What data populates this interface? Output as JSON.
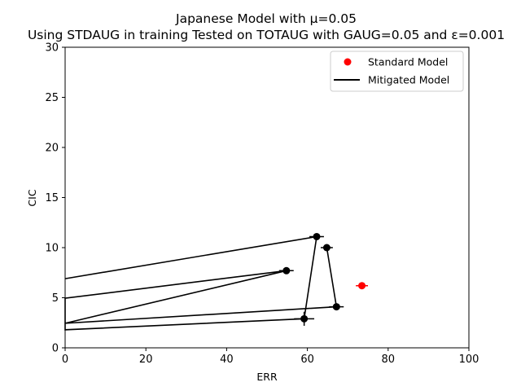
{
  "chart_data": {
    "type": "line",
    "title_line1": "Japanese Model with μ=0.05",
    "title_line2": "Using STDAUG in training Tested on TOTAUG with GAUG=0.05 and ε=0.001",
    "xlabel": "ERR",
    "ylabel": "CIC",
    "xlim": [
      0,
      100
    ],
    "ylim": [
      0,
      30
    ],
    "xticks": [
      "0",
      "20",
      "40",
      "60",
      "80",
      "100"
    ],
    "yticks": [
      "0",
      "5",
      "10",
      "15",
      "20",
      "25",
      "30"
    ],
    "legend_position": "top-right",
    "grid": false,
    "series": [
      {
        "name": "Standard Model",
        "kind": "scatter",
        "color": "#ff0000",
        "points": [
          {
            "x": 73.5,
            "y": 6.2,
            "xerr": 1.5,
            "yerr": 0.2
          }
        ]
      },
      {
        "name": "Mitigated Model",
        "kind": "line",
        "color": "#000000",
        "points": [
          {
            "x": 0,
            "y": 6.9
          },
          {
            "x": 62.3,
            "y": 11.1,
            "xerr": 1.8,
            "yerr": 0.3
          },
          {
            "x": 59.2,
            "y": 2.9,
            "xerr": 2.5,
            "yerr": 0.7
          },
          {
            "x": 0,
            "y": 1.8
          },
          {
            "x": 0,
            "y": 4.95
          },
          {
            "x": 54.8,
            "y": 7.7,
            "xerr": 1.8,
            "yerr": 0.2
          },
          {
            "x": 0,
            "y": 2.45
          },
          {
            "x": 67.2,
            "y": 4.1,
            "xerr": 1.8,
            "yerr": 0.2
          },
          {
            "x": 64.8,
            "y": 10.0,
            "xerr": 1.5,
            "yerr": 0.3
          }
        ]
      }
    ]
  }
}
